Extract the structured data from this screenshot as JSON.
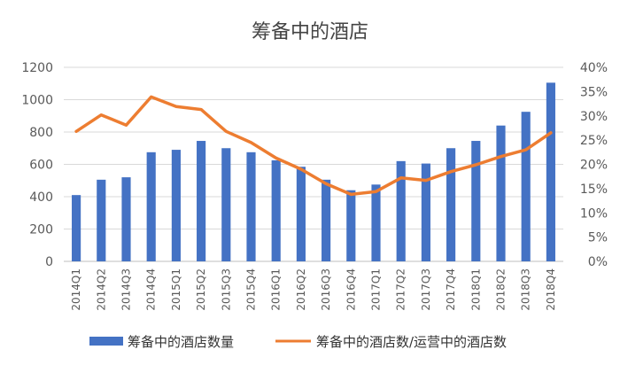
{
  "chart_data": {
    "type": "bar",
    "title": "筹备中的酒店",
    "categories": [
      "2014Q1",
      "2014Q2",
      "2014Q3",
      "2014Q4",
      "2015Q1",
      "2015Q2",
      "2015Q3",
      "2015Q4",
      "2016Q1",
      "2016Q2",
      "2016Q3",
      "2016Q4",
      "2017Q1",
      "2017Q2",
      "2017Q3",
      "2017Q4",
      "2018Q1",
      "2018Q2",
      "2018Q3",
      "2018Q4"
    ],
    "series": [
      {
        "name": "筹备中的酒店数量",
        "type": "bar",
        "axis": "left",
        "color": "#4472C4",
        "values": [
          410,
          505,
          520,
          675,
          690,
          745,
          700,
          675,
          625,
          585,
          505,
          440,
          475,
          620,
          605,
          700,
          745,
          840,
          925,
          1105
        ]
      },
      {
        "name": "筹备中的酒店数/运营中的酒店数",
        "type": "line",
        "axis": "right",
        "color": "#ED7D31",
        "values": [
          0.268,
          0.302,
          0.281,
          0.339,
          0.319,
          0.313,
          0.268,
          0.245,
          0.213,
          0.19,
          0.16,
          0.138,
          0.144,
          0.172,
          0.167,
          0.185,
          0.199,
          0.216,
          0.23,
          0.265
        ]
      }
    ],
    "y_left": {
      "ylim": [
        0,
        1200
      ],
      "ticks": [
        "0",
        "200",
        "400",
        "600",
        "800",
        "1000",
        "1200"
      ]
    },
    "y_right": {
      "ylim": [
        0,
        0.4
      ],
      "ticks": [
        "0%",
        "5%",
        "10%",
        "15%",
        "20%",
        "25%",
        "30%",
        "35%",
        "40%"
      ]
    },
    "grid": true,
    "legend_position": "bottom"
  }
}
